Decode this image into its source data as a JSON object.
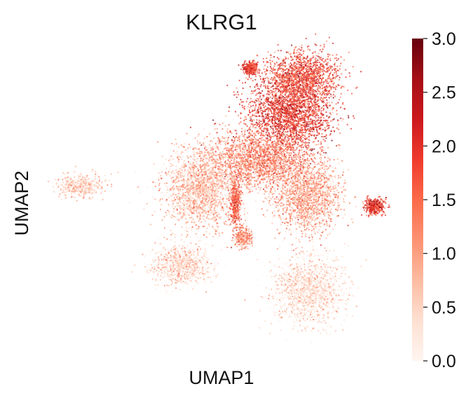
{
  "chart_data": {
    "type": "scatter",
    "title": "KLRG1",
    "xlabel": "UMAP1",
    "ylabel": "UMAP2",
    "axes_visible": false,
    "grid": false,
    "colorbar": {
      "position": "right",
      "colormap": "Reds",
      "range": [
        0.0,
        3.0
      ],
      "ticks": [
        0.0,
        0.5,
        1.0,
        1.5,
        2.0,
        2.5,
        3.0
      ],
      "tick_labels": [
        "0.0",
        "0.5",
        "1.0",
        "1.5",
        "2.0",
        "2.5",
        "3.0"
      ],
      "colors": [
        "#fff5f0",
        "#fee0d2",
        "#fcbba1",
        "#fc9272",
        "#fb6a4a",
        "#ef3b2c",
        "#cb181d",
        "#a50f15",
        "#67000d"
      ]
    },
    "clusters": [
      {
        "region": "upper central mass",
        "center": [
          4.9,
          9.1
        ],
        "spread": [
          1.6,
          1.4
        ],
        "expression": 1.9
      },
      {
        "region": "upper top lobe",
        "center": [
          5.4,
          10.6
        ],
        "spread": [
          1.3,
          0.9
        ],
        "expression": 1.7
      },
      {
        "region": "upper-left tip",
        "center": [
          3.3,
          10.9
        ],
        "spread": [
          0.25,
          0.25
        ],
        "expression": 1.8
      },
      {
        "region": "middle band",
        "center": [
          3.6,
          7.3
        ],
        "spread": [
          1.9,
          1.0
        ],
        "expression": 1.2
      },
      {
        "region": "left-middle diffuse",
        "center": [
          1.3,
          6.2
        ],
        "spread": [
          1.3,
          1.4
        ],
        "expression": 0.7
      },
      {
        "region": "central vertical streak",
        "center": [
          2.7,
          5.6
        ],
        "spread": [
          0.2,
          0.9
        ],
        "expression": 1.5
      },
      {
        "region": "right-middle region",
        "center": [
          5.6,
          5.9
        ],
        "spread": [
          1.2,
          1.3
        ],
        "expression": 0.9
      },
      {
        "region": "right small cluster",
        "center": [
          8.3,
          5.5
        ],
        "spread": [
          0.4,
          0.3
        ],
        "expression": 1.9
      },
      {
        "region": "far-left tail",
        "center": [
          -3.5,
          6.3
        ],
        "spread": [
          0.8,
          0.4
        ],
        "expression": 0.5
      },
      {
        "region": "bottom-center lobe",
        "center": [
          5.6,
          2.2
        ],
        "spread": [
          1.3,
          1.2
        ],
        "expression": 0.3
      },
      {
        "region": "bottom-left lobe",
        "center": [
          0.5,
          3.2
        ],
        "spread": [
          1.1,
          0.7
        ],
        "expression": 0.4
      },
      {
        "region": "lower-middle spot",
        "center": [
          3.0,
          4.3
        ],
        "spread": [
          0.3,
          0.4
        ],
        "expression": 1.0
      }
    ]
  }
}
